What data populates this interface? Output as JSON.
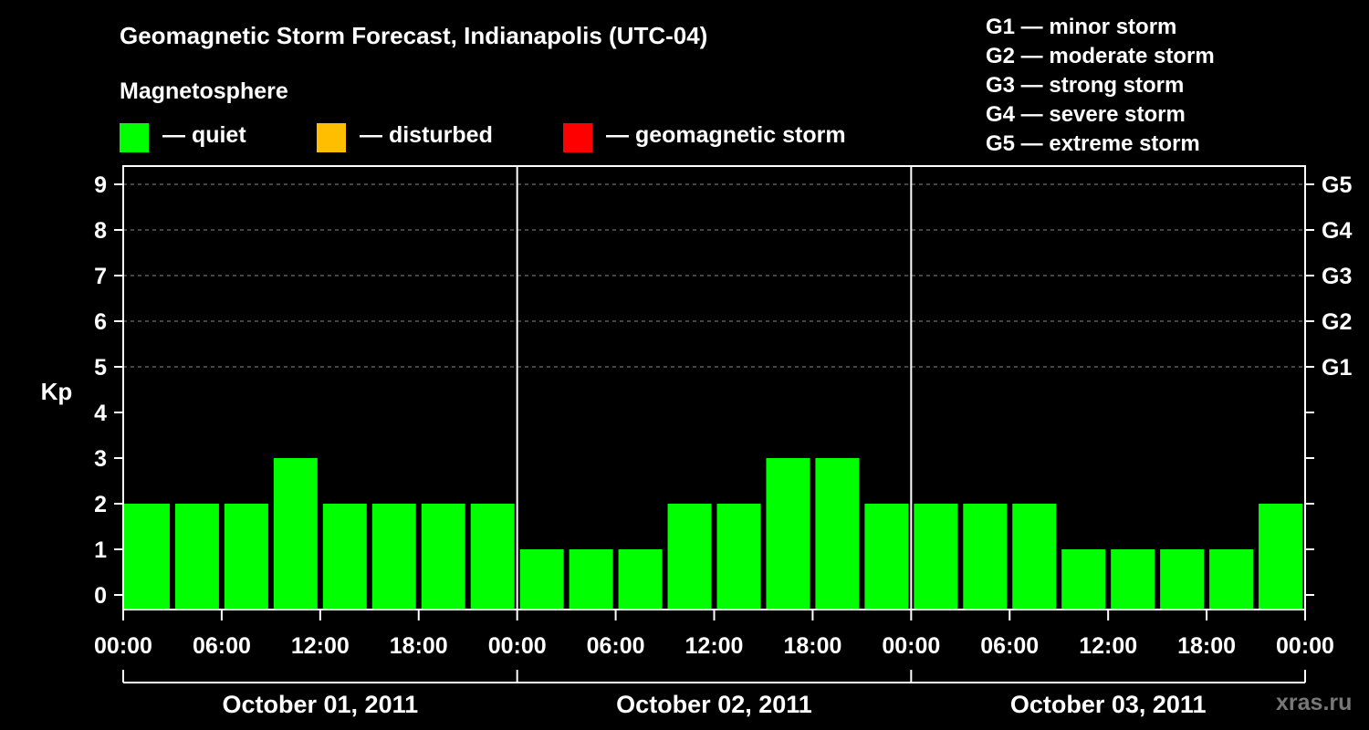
{
  "header": {
    "title": "Geomagnetic Storm Forecast, Indianapolis (UTC-04)",
    "subtitle": "Magnetosphere"
  },
  "legend": [
    {
      "label": "— quiet",
      "color": "#00ff00"
    },
    {
      "label": "— disturbed",
      "color": "#ffbf00"
    },
    {
      "label": "— geomagnetic storm",
      "color": "#ff0000"
    }
  ],
  "storm_scale": [
    "G1 — minor storm",
    "G2 — moderate storm",
    "G3 — strong storm",
    "G4 — severe storm",
    "G5 — extreme storm"
  ],
  "watermark": "xras.ru",
  "chart_data": {
    "type": "bar",
    "ylabel": "Kp",
    "ylim": [
      0,
      9
    ],
    "yticks": [
      "0",
      "1",
      "2",
      "3",
      "4",
      "5",
      "6",
      "7",
      "8",
      "9"
    ],
    "right_ticks": [
      {
        "kp": 5,
        "label": "G1"
      },
      {
        "kp": 6,
        "label": "G2"
      },
      {
        "kp": 7,
        "label": "G3"
      },
      {
        "kp": 8,
        "label": "G4"
      },
      {
        "kp": 9,
        "label": "G5"
      }
    ],
    "xticks": [
      "00:00",
      "06:00",
      "12:00",
      "18:00",
      "00:00",
      "06:00",
      "12:00",
      "18:00",
      "00:00",
      "06:00",
      "12:00",
      "18:00",
      "00:00"
    ],
    "days": [
      "October 01, 2011",
      "October 02, 2011",
      "October 03, 2011"
    ],
    "intervals": [
      "00:00",
      "03:00",
      "06:00",
      "09:00",
      "12:00",
      "15:00",
      "18:00",
      "21:00",
      "00:00",
      "03:00",
      "06:00",
      "09:00",
      "12:00",
      "15:00",
      "18:00",
      "21:00",
      "00:00",
      "03:00",
      "06:00",
      "09:00",
      "12:00",
      "15:00",
      "18:00",
      "21:00"
    ],
    "values": [
      2,
      2,
      2,
      3,
      2,
      2,
      2,
      2,
      1,
      1,
      1,
      2,
      2,
      3,
      3,
      2,
      2,
      2,
      2,
      1,
      1,
      1,
      1,
      2
    ],
    "bar_color": "#00ff00",
    "grid": "dashed at integer Kp 5–9"
  }
}
